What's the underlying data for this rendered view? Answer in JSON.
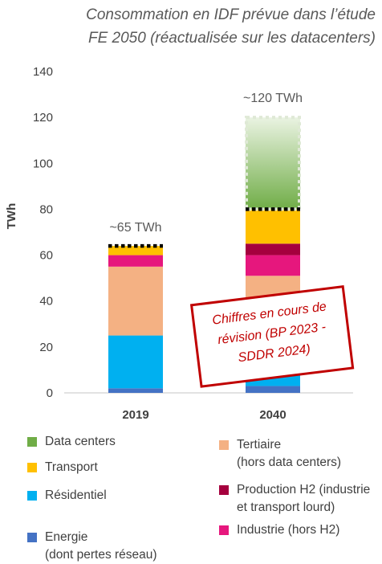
{
  "title_lines": [
    "Consommation en IDF prévue dans l’étude",
    "FE 2050 (réactualisée sur les datacenters)"
  ],
  "chart_data": {
    "type": "bar",
    "stacked": true,
    "categories": [
      "2019",
      "2040"
    ],
    "ylabel": "TWh",
    "ylim": [
      0,
      140
    ],
    "yticks": [
      0,
      20,
      40,
      60,
      80,
      100,
      120,
      140
    ],
    "grid": false,
    "series": [
      {
        "name": "Energie\n(dont pertes réseau)",
        "color": "#4472c4",
        "values": [
          2,
          3
        ]
      },
      {
        "name": "Résidentiel",
        "color": "#00b0f0",
        "values": [
          23,
          20
        ]
      },
      {
        "name": "Tertiaire\n(hors data centers)",
        "color": "#f4b183",
        "values": [
          30,
          28
        ]
      },
      {
        "name": "Industrie (hors H2)",
        "color": "#e6177d",
        "values": [
          5,
          9
        ]
      },
      {
        "name": "Production H2 (industrie\net transport lourd)",
        "color": "#a5003e",
        "values": [
          0,
          5
        ]
      },
      {
        "name": "Transport",
        "color": "#ffc000",
        "values": [
          4,
          15
        ]
      },
      {
        "name": "Data centers",
        "color": "#70ad47",
        "values": [
          0,
          40
        ],
        "gradient": true
      }
    ],
    "totals": [
      "~65 TWh",
      "~120 TWh"
    ],
    "dotted_markers": [
      64,
      80
    ],
    "legend_position": "bottom"
  },
  "stamp": {
    "lines": [
      "Chiffres en cours de",
      "révision (BP 2023 -",
      "SDDR 2024)"
    ],
    "color": "#c00000"
  }
}
